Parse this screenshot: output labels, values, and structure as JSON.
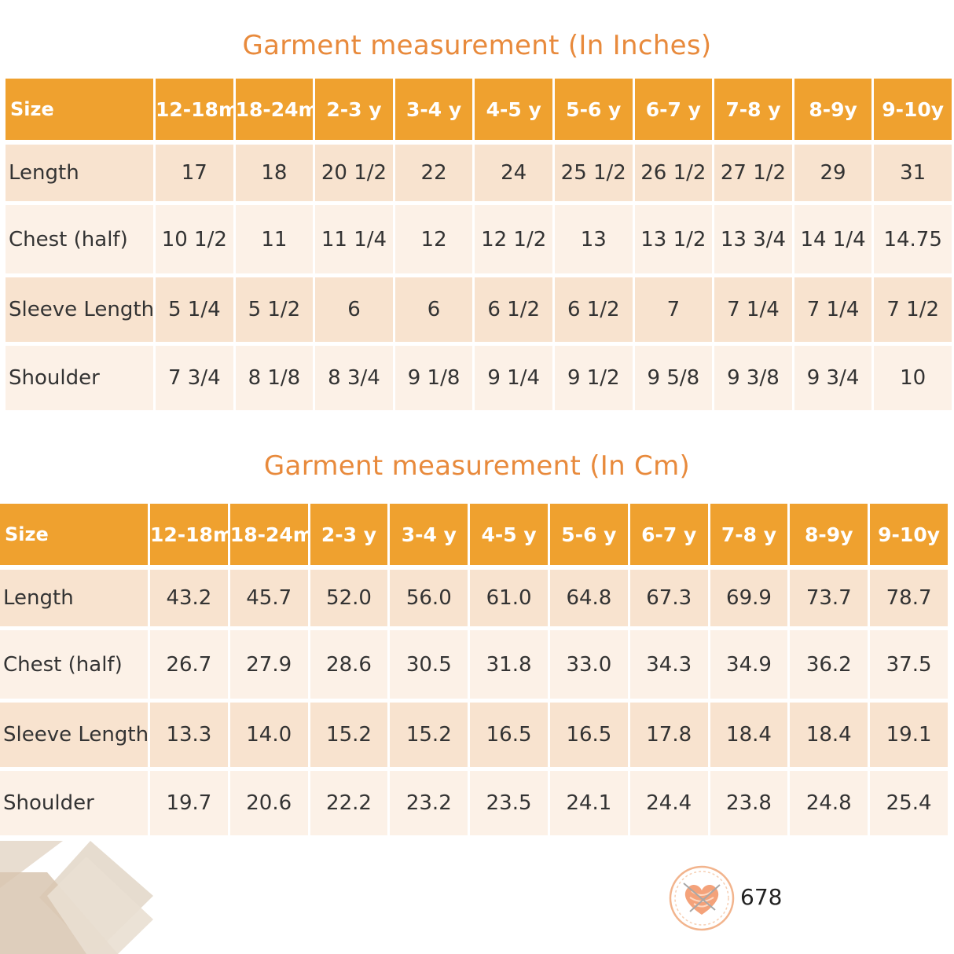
{
  "inches": {
    "title": "Garment measurement (In Inches)",
    "header": [
      "Size",
      "12-18m",
      "18-24m",
      "2-3 y",
      "3-4 y",
      "4-5 y",
      "5-6 y",
      "6-7 y",
      "7-8 y",
      "8-9y",
      "9-10y"
    ],
    "rows": [
      [
        "Length",
        "17",
        "18",
        "20 1/2",
        "22",
        "24",
        "25 1/2",
        "26 1/2",
        "27 1/2",
        "29",
        "31"
      ],
      [
        "Chest (half)",
        "10 1/2",
        "11",
        "11 1/4",
        "12",
        "12 1/2",
        "13",
        "13 1/2",
        "13 3/4",
        "14 1/4",
        "14.75"
      ],
      [
        "Sleeve Length",
        "5 1/4",
        "5 1/2",
        "6",
        "6",
        "6 1/2",
        "6 1/2",
        "7",
        "7 1/4",
        "7 1/4",
        "7 1/2"
      ],
      [
        "Shoulder",
        "7 3/4",
        "8 1/8",
        "8 3/4",
        "9 1/8",
        "9 1/4",
        "9 1/2",
        "9 5/8",
        "9 3/8",
        "9 3/4",
        "10"
      ]
    ]
  },
  "cm": {
    "title": "Garment measurement (In Cm)",
    "header": [
      "Size",
      "12-18m",
      "18-24m",
      "2-3 y",
      "3-4 y",
      "4-5 y",
      "5-6 y",
      "6-7 y",
      "7-8 y",
      "8-9y",
      "9-10y"
    ],
    "rows": [
      [
        "Length",
        "43.2",
        "45.7",
        "52.0",
        "56.0",
        "61.0",
        "64.8",
        "67.3",
        "69.9",
        "73.7",
        "78.7"
      ],
      [
        "Chest (half)",
        "26.7",
        "27.9",
        "28.6",
        "30.5",
        "31.8",
        "33.0",
        "34.3",
        "34.9",
        "36.2",
        "37.5"
      ],
      [
        "Sleeve Length",
        "13.3",
        "14.0",
        "15.2",
        "15.2",
        "16.5",
        "16.5",
        "17.8",
        "18.4",
        "18.4",
        "19.1"
      ],
      [
        "Shoulder",
        "19.7",
        "20.6",
        "22.2",
        "23.2",
        "23.5",
        "24.1",
        "24.4",
        "23.8",
        "24.8",
        "25.4"
      ]
    ]
  },
  "footer": {
    "logo_icon": "heart-yarn-logo-icon",
    "number": "678"
  },
  "colors": {
    "accent": "#efa12f",
    "title": "#e88a3c",
    "row_odd": "#f8e3cf",
    "row_even": "#fcf1e7"
  }
}
